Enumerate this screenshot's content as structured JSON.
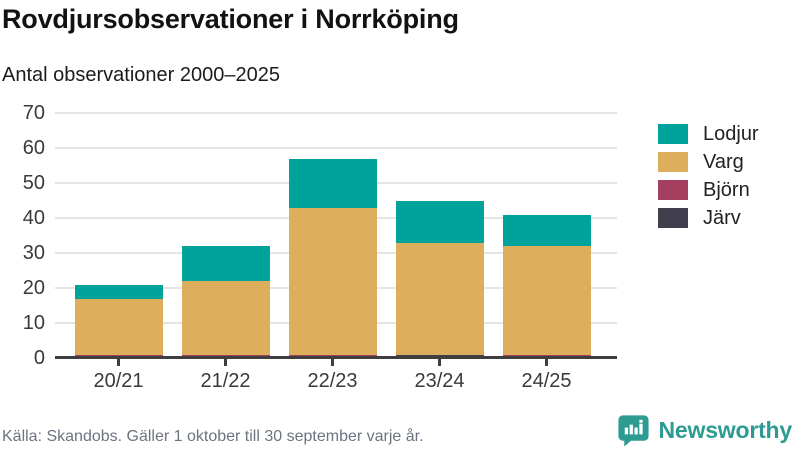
{
  "header": {
    "title": "Rovdjursobservationer i Norrköping",
    "subtitle": "Antal observationer 2000–2025"
  },
  "chart_data": {
    "type": "bar",
    "stacked": true,
    "title": "Rovdjursobservationer i Norrköping",
    "subtitle": "Antal observationer 2000–2025",
    "categories": [
      "20/21",
      "21/22",
      "22/23",
      "23/24",
      "24/25"
    ],
    "series": [
      {
        "name": "Järv",
        "color": "#413e4d",
        "values": [
          0,
          0,
          0,
          1,
          0
        ]
      },
      {
        "name": "Björn",
        "color": "#a43f5f",
        "values": [
          1,
          1,
          1,
          0,
          1
        ]
      },
      {
        "name": "Varg",
        "color": "#ddae5c",
        "values": [
          16,
          21,
          42,
          32,
          31
        ]
      },
      {
        "name": "Lodjur",
        "color": "#00a39b",
        "values": [
          4,
          10,
          14,
          12,
          9
        ]
      }
    ],
    "totals": [
      21,
      32,
      57,
      45,
      41
    ],
    "ylim": [
      0,
      70
    ],
    "yticks": [
      0,
      10,
      20,
      30,
      40,
      50,
      60,
      70
    ],
    "grid": true,
    "legend_position": "right"
  },
  "legend": {
    "items": [
      {
        "label": "Lodjur",
        "color": "#00a39b"
      },
      {
        "label": "Varg",
        "color": "#ddae5c"
      },
      {
        "label": "Björn",
        "color": "#a43f5f"
      },
      {
        "label": "Järv",
        "color": "#413e4d"
      }
    ]
  },
  "footer": {
    "source": "Källa: Skandobs. Gäller 1 oktober till 30 september varje år.",
    "brand": "Newsworthy"
  },
  "colors": {
    "accent_teal": "#00a39b",
    "brand_teal": "#2d9b92",
    "gridline": "#e5e5e5",
    "axis": "#3e3e3e",
    "text_muted": "#6c7480"
  }
}
